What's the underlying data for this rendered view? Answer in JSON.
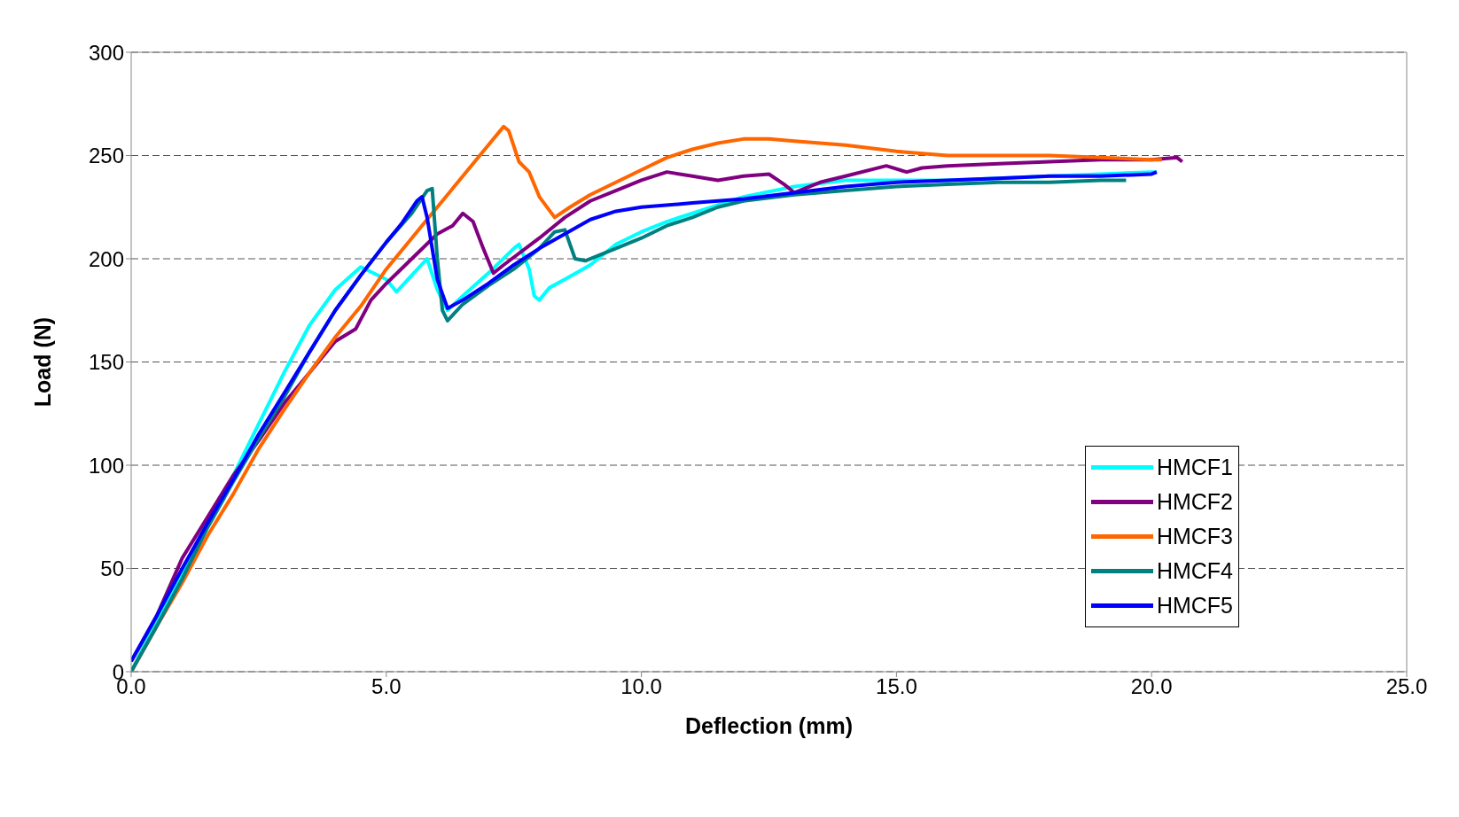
{
  "chart_data": {
    "type": "line",
    "xlabel": "Deflection (mm)",
    "ylabel": "Load (N)",
    "xlim": [
      0,
      25
    ],
    "ylim": [
      0,
      300
    ],
    "xticks": [
      {
        "value": 0,
        "label": "0.0"
      },
      {
        "value": 5,
        "label": "5.0"
      },
      {
        "value": 10,
        "label": "10.0"
      },
      {
        "value": 15,
        "label": "15.0"
      },
      {
        "value": 20,
        "label": "20.0"
      },
      {
        "value": 25,
        "label": "25.0"
      }
    ],
    "yticks": [
      0,
      50,
      100,
      150,
      200,
      250,
      300
    ],
    "grid": "y",
    "legend": "bottom right",
    "marker": "none",
    "line_style": "solid",
    "series": [
      {
        "name": "HMCF1",
        "color": "#00ffff",
        "x": [
          0,
          0.5,
          1,
          1.5,
          2,
          2.5,
          3,
          3.5,
          4,
          4.5,
          5,
          5.2,
          5.5,
          5.8,
          6,
          6.2,
          6.5,
          7,
          7.5,
          7.6,
          7.8,
          7.9,
          8,
          8.2,
          8.5,
          9,
          9.5,
          10,
          10.5,
          11,
          12,
          13,
          14,
          15,
          16,
          17,
          18,
          19,
          20,
          20.1
        ],
        "values": [
          0,
          25,
          48,
          73,
          95,
          120,
          145,
          168,
          185,
          196,
          190,
          184,
          192,
          200,
          185,
          175,
          182,
          193,
          205,
          207,
          195,
          182,
          180,
          186,
          190,
          197,
          207,
          213,
          218,
          222,
          230,
          235,
          238,
          238,
          238,
          239,
          240,
          241,
          242,
          242
        ]
      },
      {
        "name": "HMCF2",
        "color": "#800080",
        "x": [
          0,
          0.5,
          1,
          1.5,
          2,
          2.5,
          3,
          3.5,
          4,
          4.4,
          4.7,
          5,
          5.5,
          6,
          6.3,
          6.5,
          6.7,
          6.9,
          7.1,
          7.3,
          8,
          8.5,
          9,
          9.5,
          10,
          10.5,
          11,
          11.5,
          12,
          12.5,
          12.8,
          13,
          13.5,
          14,
          14.8,
          15.2,
          15.5,
          16,
          17,
          18,
          19,
          20,
          20.5,
          20.6
        ],
        "values": [
          5,
          27,
          55,
          75,
          95,
          112,
          130,
          145,
          160,
          166,
          180,
          188,
          200,
          212,
          216,
          222,
          218,
          205,
          193,
          197,
          210,
          220,
          228,
          233,
          238,
          242,
          240,
          238,
          240,
          241,
          236,
          232,
          237,
          240,
          245,
          242,
          244,
          245,
          246,
          247,
          248,
          248,
          249,
          247
        ]
      },
      {
        "name": "HMCF3",
        "color": "#ff6600",
        "x": [
          0,
          0.5,
          1,
          1.5,
          2,
          2.5,
          3,
          3.5,
          4,
          4.5,
          5,
          5.5,
          6,
          6.5,
          7,
          7.3,
          7.4,
          7.6,
          7.8,
          8,
          8.3,
          8.6,
          9,
          9.5,
          10,
          10.5,
          11,
          11.5,
          12,
          12.5,
          13,
          14,
          15,
          16,
          17,
          18,
          19,
          20,
          20.2
        ],
        "values": [
          0,
          22,
          43,
          66,
          86,
          108,
          127,
          145,
          162,
          177,
          195,
          210,
          225,
          240,
          255,
          264,
          262,
          247,
          242,
          230,
          220,
          225,
          231,
          237,
          243,
          249,
          253,
          256,
          258,
          258,
          257,
          255,
          252,
          250,
          250,
          250,
          249,
          248,
          248
        ]
      },
      {
        "name": "HMCF4",
        "color": "#008080",
        "x": [
          0,
          0.5,
          1,
          1.5,
          2,
          2.5,
          3,
          3.5,
          4,
          4.5,
          5,
          5.5,
          5.8,
          5.9,
          6,
          6.1,
          6.2,
          6.5,
          7,
          7.5,
          8,
          8.3,
          8.5,
          8.7,
          8.9,
          9.5,
          10,
          10.5,
          11,
          11.5,
          12,
          13,
          14,
          15,
          16,
          17,
          18,
          19,
          19.5
        ],
        "values": [
          0,
          22,
          45,
          70,
          92,
          113,
          133,
          155,
          175,
          192,
          208,
          222,
          233,
          234,
          200,
          175,
          170,
          178,
          187,
          195,
          205,
          213,
          214,
          200,
          199,
          205,
          210,
          216,
          220,
          225,
          228,
          231,
          233,
          235,
          236,
          237,
          237,
          238,
          238
        ]
      },
      {
        "name": "HMCF5",
        "color": "#0000ff",
        "x": [
          0,
          0.5,
          1,
          1.5,
          2,
          2.5,
          3,
          3.5,
          4,
          4.5,
          5,
          5.3,
          5.6,
          5.7,
          5.8,
          6,
          6.2,
          6.5,
          7,
          7.5,
          8,
          8.5,
          9,
          9.5,
          10,
          11,
          12,
          13,
          14,
          15,
          16,
          17,
          18,
          19,
          20,
          20.1
        ],
        "values": [
          5,
          27,
          50,
          72,
          93,
          115,
          135,
          155,
          175,
          192,
          208,
          217,
          228,
          230,
          220,
          190,
          176,
          180,
          188,
          197,
          205,
          212,
          219,
          223,
          225,
          227,
          229,
          232,
          235,
          237,
          238,
          239,
          240,
          240,
          241,
          242
        ]
      }
    ]
  }
}
